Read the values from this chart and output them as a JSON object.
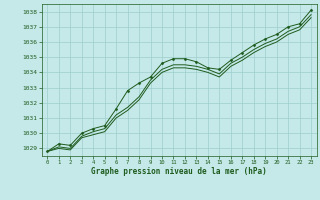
{
  "background_color": "#c5e8e8",
  "plot_bg_color": "#c5e8e8",
  "grid_color": "#9ecece",
  "line_color": "#1e5c1e",
  "title": "Graphe pression niveau de la mer (hPa)",
  "xlim": [
    -0.5,
    23.5
  ],
  "ylim": [
    1028.5,
    1038.5
  ],
  "yticks": [
    1029,
    1030,
    1031,
    1032,
    1033,
    1034,
    1035,
    1036,
    1037,
    1038
  ],
  "xticks": [
    0,
    1,
    2,
    3,
    4,
    5,
    6,
    7,
    8,
    9,
    10,
    11,
    12,
    13,
    14,
    15,
    16,
    17,
    18,
    19,
    20,
    21,
    22,
    23
  ],
  "series1": {
    "x": [
      0,
      1,
      2,
      3,
      4,
      5,
      6,
      7,
      8,
      9,
      10,
      11,
      12,
      13,
      14,
      15,
      16,
      17,
      18,
      19,
      20,
      21,
      22,
      23
    ],
    "y": [
      1028.8,
      1029.3,
      1029.2,
      1030.0,
      1030.3,
      1030.5,
      1031.6,
      1032.8,
      1033.3,
      1033.7,
      1034.6,
      1034.9,
      1034.9,
      1034.7,
      1034.3,
      1034.2,
      1034.8,
      1035.3,
      1035.8,
      1036.2,
      1036.5,
      1037.0,
      1037.2,
      1038.1
    ]
  },
  "series2": {
    "x": [
      0,
      1,
      2,
      3,
      4,
      5,
      6,
      7,
      8,
      9,
      10,
      11,
      12,
      13,
      14,
      15,
      16,
      17,
      18,
      19,
      20,
      21,
      22,
      23
    ],
    "y": [
      1028.8,
      1029.1,
      1029.0,
      1029.8,
      1030.1,
      1030.3,
      1031.2,
      1031.7,
      1032.4,
      1033.5,
      1034.2,
      1034.5,
      1034.5,
      1034.4,
      1034.2,
      1033.9,
      1034.6,
      1035.0,
      1035.5,
      1035.9,
      1036.2,
      1036.7,
      1037.0,
      1037.8
    ]
  },
  "series3": {
    "x": [
      0,
      1,
      2,
      3,
      4,
      5,
      6,
      7,
      8,
      9,
      10,
      11,
      12,
      13,
      14,
      15,
      16,
      17,
      18,
      19,
      20,
      21,
      22,
      23
    ],
    "y": [
      1028.8,
      1029.0,
      1028.9,
      1029.7,
      1029.9,
      1030.1,
      1031.0,
      1031.5,
      1032.2,
      1033.3,
      1034.0,
      1034.3,
      1034.3,
      1034.2,
      1034.0,
      1033.7,
      1034.4,
      1034.8,
      1035.3,
      1035.7,
      1036.0,
      1036.5,
      1036.8,
      1037.6
    ]
  }
}
